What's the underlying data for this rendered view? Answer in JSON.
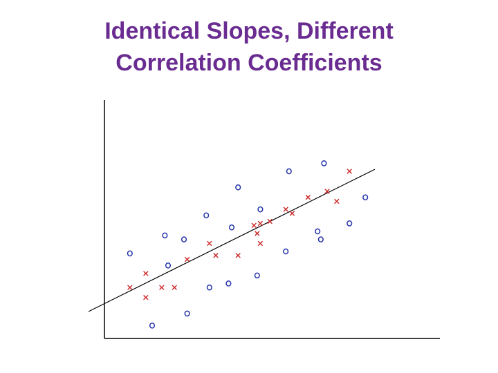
{
  "title": {
    "line1": "Identical Slopes, Different",
    "line2": "Correlation Coefficients"
  },
  "chart_data": {
    "type": "scatter",
    "title": "Identical Slopes, Different Correlation Coefficients",
    "xlabel": "",
    "ylabel": "",
    "xlim": [
      0,
      100
    ],
    "ylim": [
      0,
      100
    ],
    "grid": false,
    "tick_labels": false,
    "colors": {
      "x_marker": "#cc2222",
      "o_marker": "#2233aa",
      "axis": "#000000",
      "fit_line": "#000000"
    },
    "series": [
      {
        "marker": "x",
        "x": [
          8,
          13,
          13,
          18,
          22,
          26,
          33,
          35,
          42,
          47,
          48,
          49,
          49,
          52,
          57,
          59,
          64,
          70,
          73,
          77
        ],
        "y": [
          22,
          17,
          29,
          22,
          22,
          36,
          44,
          38,
          38,
          53,
          49,
          44,
          54,
          55,
          61,
          59,
          67,
          70,
          65,
          80
        ]
      },
      {
        "marker": "o",
        "x": [
          8,
          15,
          19,
          20,
          25,
          26,
          32,
          33,
          39,
          40,
          42,
          48,
          49,
          57,
          58,
          67,
          68,
          69,
          77,
          82
        ],
        "y": [
          39,
          3,
          48,
          33,
          46,
          9,
          58,
          22,
          24,
          52,
          72,
          28,
          61,
          40,
          80,
          50,
          46,
          84,
          54,
          67
        ]
      }
    ],
    "fit_line": {
      "x": [
        -5,
        85
      ],
      "y": [
        10,
        81
      ]
    }
  }
}
